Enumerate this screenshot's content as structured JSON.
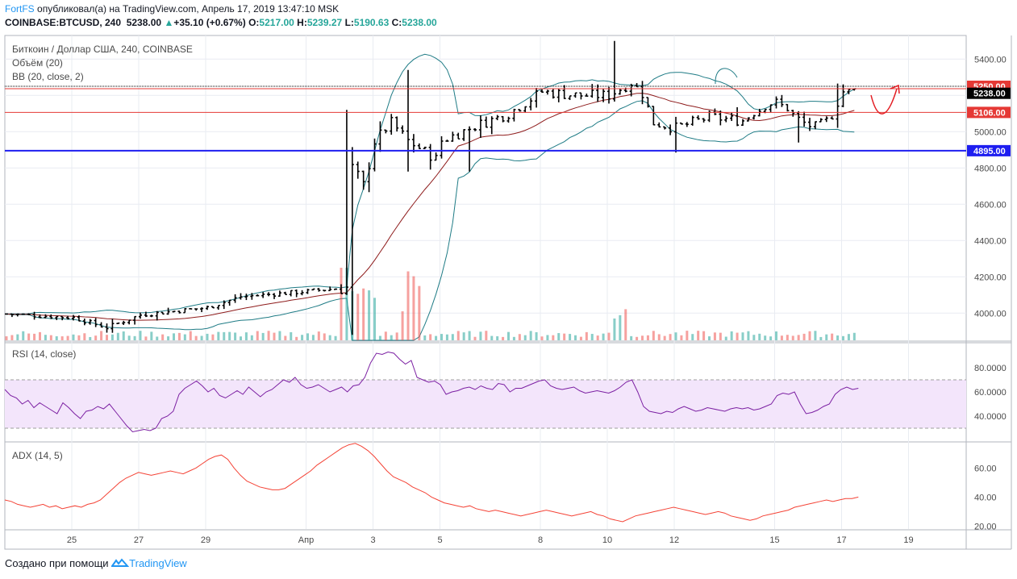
{
  "header": {
    "author": "FortFS",
    "published_text": "опубликовал(а) на TradingView.com, Апрель 17, 2019 13:47:10 MSK",
    "symbol": "COINBASE:BTCUSD, 240",
    "last": "5238.00",
    "change": "+35.10 (+0.67%)",
    "o_label": "O:",
    "o": "5217.00",
    "h_label": "H:",
    "h": "5239.27",
    "l_label": "L:",
    "l": "5190.63",
    "c_label": "C:",
    "c": "5238.00"
  },
  "legend": {
    "title": "Биткоин / Доллар США, 240, COINBASE",
    "volume": "Объём (20)",
    "bb": "BB (20, close, 2)",
    "rsi": "RSI (14, close)",
    "adx": "ADX (14, 5)"
  },
  "footer": {
    "created": "Создано при помощи",
    "brand": "TradingView"
  },
  "colors": {
    "up": "#26a69a",
    "down": "#ef5350",
    "bb_band": "#1e7b85",
    "bb_basis": "#8e1b1b",
    "rsi": "#7b1fa2",
    "rsi_bg": "#f3e5fb",
    "adx": "#f44336",
    "hline_red": "#e53935",
    "hline_blue": "#1e1ef0",
    "arrow": "#e31e24"
  },
  "chart_data": [
    {
      "type": "bar",
      "pane": "price",
      "symbol": "COINBASE:BTCUSD",
      "timeframe": "240",
      "y_ticks": [
        "5400.00",
        "5200.00",
        "5000.00",
        "4800.00",
        "4600.00",
        "4400.00",
        "4200.00",
        "4000.00"
      ],
      "ylim": [
        3850,
        5530
      ],
      "x_ticks": [
        "25",
        "27",
        "29",
        "Апр",
        "3",
        "5",
        "8",
        "10",
        "12",
        "15",
        "17",
        "19"
      ],
      "price_labels": [
        {
          "value": 5250,
          "text": "5250.00",
          "kind": "line-red"
        },
        {
          "value": 5238,
          "text": "5238.00",
          "kind": "last"
        },
        {
          "value": 5106,
          "text": "5106.00",
          "kind": "line-red"
        },
        {
          "value": 4895,
          "text": "4895.00",
          "kind": "line-blue"
        }
      ],
      "horizontal_lines": [
        5250,
        5106,
        4895
      ],
      "close_series_key_points": [
        [
          "Mar 23",
          3995
        ],
        [
          "Mar 25",
          3975
        ],
        [
          "Mar 26",
          3920
        ],
        [
          "Mar 27",
          3990
        ],
        [
          "Mar 29",
          4030
        ],
        [
          "Mar 30",
          4090
        ],
        [
          "Apr 1",
          4120
        ],
        [
          "Apr 2 04:00",
          4140
        ],
        [
          "Apr 2 08:00",
          4800
        ],
        [
          "Apr 2 16:00",
          4700
        ],
        [
          "Apr 3",
          4950
        ],
        [
          "Apr 3 12:00",
          5050
        ],
        [
          "Apr 4",
          4950
        ],
        [
          "Apr 4 20:00",
          4850
        ],
        [
          "Apr 5",
          4950
        ],
        [
          "Apr 6",
          5030
        ],
        [
          "Apr 7",
          5100
        ],
        [
          "Apr 8",
          5220
        ],
        [
          "Apr 9",
          5200
        ],
        [
          "Apr 10",
          5200
        ],
        [
          "Apr 10 16:00",
          5270
        ],
        [
          "Apr 11",
          5210
        ],
        [
          "Apr 11 08:00",
          5050
        ],
        [
          "Apr 12",
          5020
        ],
        [
          "Apr 13",
          5080
        ],
        [
          "Apr 14",
          5060
        ],
        [
          "Apr 15",
          5170
        ],
        [
          "Apr 15 20:00",
          5050
        ],
        [
          "Apr 16",
          5030
        ],
        [
          "Apr 16 16:00",
          5080
        ],
        [
          "Apr 17",
          5220
        ],
        [
          "Apr 17 12:00",
          5238
        ]
      ]
    },
    {
      "type": "line",
      "pane": "rsi",
      "y_ticks": [
        "80.0000",
        "60.0000",
        "40.0000"
      ],
      "ylim": [
        20,
        100
      ],
      "band": [
        30,
        70
      ],
      "values": [
        62,
        57,
        55,
        50,
        53,
        47,
        51,
        48,
        45,
        42,
        51,
        47,
        42,
        38,
        44,
        45,
        48,
        46,
        50,
        44,
        38,
        32,
        27,
        28,
        29,
        28,
        30,
        38,
        40,
        44,
        58,
        63,
        66,
        69,
        65,
        60,
        63,
        57,
        55,
        58,
        61,
        58,
        64,
        60,
        56,
        60,
        62,
        66,
        70,
        68,
        72,
        66,
        63,
        64,
        66,
        63,
        60,
        62,
        64,
        60,
        65,
        66,
        72,
        84,
        92,
        91,
        93,
        92,
        87,
        83,
        86,
        72,
        70,
        68,
        69,
        66,
        58,
        60,
        61,
        63,
        64,
        62,
        65,
        63,
        62,
        67,
        66,
        60,
        63,
        63,
        65,
        67,
        69,
        70,
        65,
        63,
        62,
        63,
        64,
        61,
        59,
        60,
        61,
        60,
        59,
        61,
        64,
        68,
        70,
        60,
        48,
        44,
        43,
        42,
        44,
        43,
        46,
        48,
        46,
        44,
        45,
        47,
        46,
        45,
        44,
        46,
        47,
        46,
        47,
        45,
        46,
        48,
        50,
        57,
        59,
        58,
        60,
        50,
        42,
        43,
        45,
        48,
        50,
        58,
        62,
        64,
        62,
        63
      ]
    },
    {
      "type": "line",
      "pane": "adx",
      "y_ticks": [
        "60.00",
        "40.00",
        "20.00"
      ],
      "ylim": [
        18,
        78
      ],
      "values": [
        38,
        37,
        35,
        34,
        33,
        34,
        35,
        33,
        34,
        32,
        33,
        34,
        33,
        35,
        36,
        38,
        42,
        46,
        50,
        53,
        55,
        57,
        56,
        55,
        56,
        57,
        58,
        57,
        56,
        58,
        60,
        63,
        66,
        68,
        69,
        66,
        60,
        55,
        51,
        49,
        47,
        46,
        45,
        45,
        46,
        49,
        52,
        55,
        58,
        62,
        65,
        68,
        71,
        74,
        76,
        77,
        75,
        72,
        68,
        63,
        58,
        54,
        52,
        50,
        47,
        45,
        43,
        40,
        38,
        36,
        35,
        34,
        33,
        34,
        32,
        31,
        30,
        31,
        30,
        29,
        28,
        27,
        28,
        29,
        30,
        31,
        30,
        29,
        28,
        27,
        28,
        29,
        30,
        28,
        27,
        25,
        24,
        23,
        25,
        27,
        28,
        29,
        30,
        31,
        32,
        33,
        32,
        31,
        30,
        29,
        28,
        29,
        30,
        29,
        27,
        26,
        25,
        24,
        25,
        27,
        28,
        29,
        30,
        31,
        33,
        34,
        35,
        36,
        37,
        38,
        37,
        38,
        39,
        39,
        40
      ],
      "note_values_read_from_plot": true
    }
  ]
}
